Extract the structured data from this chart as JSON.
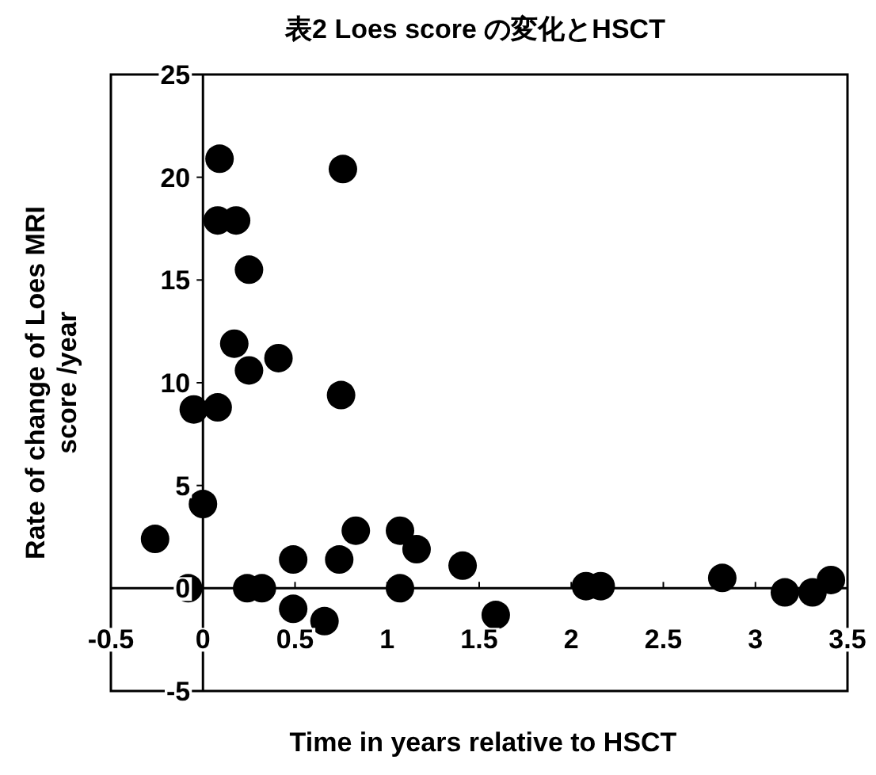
{
  "chart_data": {
    "type": "scatter",
    "title": "表2  Loes score の変化とHSCT",
    "xlabel": "Time in years relative to HSCT",
    "ylabel": "Rate of change of Loes MRI\nscore /year",
    "x": [
      -0.26,
      -0.08,
      -0.05,
      0.0,
      0.08,
      0.09,
      0.08,
      0.18,
      0.25,
      0.17,
      0.25,
      0.41,
      0.24,
      0.32,
      0.49,
      0.49,
      0.66,
      0.74,
      0.75,
      0.76,
      0.83,
      1.07,
      1.07,
      1.16,
      1.41,
      1.59,
      2.08,
      2.16,
      2.82,
      3.16,
      3.31,
      3.41
    ],
    "values": [
      2.4,
      0,
      8.7,
      4.1,
      8.8,
      20.9,
      17.9,
      17.9,
      15.5,
      11.9,
      10.6,
      11.2,
      0,
      0,
      1.4,
      -1.0,
      -1.6,
      1.4,
      9.4,
      20.4,
      2.8,
      2.8,
      0,
      1.9,
      1.1,
      -1.3,
      0.1,
      0.1,
      0.5,
      -0.2,
      -0.2,
      0.4
    ],
    "color": "#000000",
    "marker": "circle",
    "grid": false,
    "xlim": [
      -0.5,
      3.5
    ],
    "ylim": [
      -5,
      25
    ],
    "xticks": [
      -0.5,
      0,
      0.5,
      1,
      1.5,
      2,
      2.5,
      3,
      3.5
    ],
    "yticks": [
      -5,
      0,
      5,
      10,
      15,
      20,
      25
    ]
  }
}
